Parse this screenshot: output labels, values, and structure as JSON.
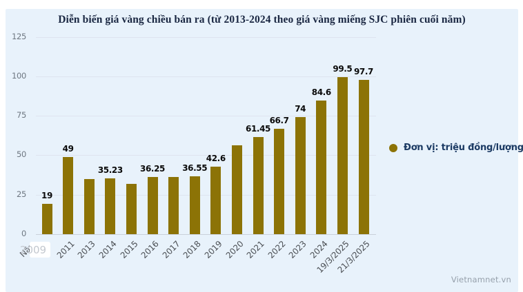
{
  "page": {
    "watermark": "Vietnamnet.vn"
  },
  "chart_data": {
    "type": "bar",
    "title": "Diễn biến giá vàng chiều bán ra (từ 2013-2024 theo giá vàng miếng SJC phiên cuối năm)",
    "x_axis_label": "Năm",
    "highlighted_tick": "2009",
    "categories": [
      "2009",
      "2011",
      "2013",
      "2014",
      "2015",
      "2016",
      "2017",
      "2018",
      "2019",
      "2020",
      "2021",
      "2022",
      "2023",
      "2024",
      "19/3/2025",
      "21/3/2025"
    ],
    "values": [
      19,
      49,
      34.8,
      35.23,
      31.9,
      36.25,
      36.4,
      36.55,
      42.6,
      56.1,
      61.45,
      66.7,
      74,
      84.6,
      99.5,
      97.7
    ],
    "data_labels": [
      "19",
      "49",
      "",
      "35.23",
      "",
      "36.25",
      "",
      "36.55",
      "42.6",
      "",
      "61.45",
      "66.7",
      "74",
      "84.6",
      "99.5",
      "97.7"
    ],
    "y_ticks": [
      0,
      25,
      50,
      75,
      100,
      125
    ],
    "ylim": [
      0,
      125
    ],
    "grid": true,
    "legend": {
      "position": "right",
      "label": "Đơn vị: triệu đồng/lượng",
      "marker_color": "#8c7306"
    },
    "colors": {
      "bar": "#8c7306",
      "panel_background": "#e8f2fb",
      "title_text": "#1a2742",
      "gridline": "#dee4ef",
      "axis_line": "#c9d1da",
      "y_tick_text": "#6e7781",
      "x_tick_text": "#4b4f54",
      "value_label_text": "#0b0b0b",
      "legend_text": "#1b3a63",
      "watermark_text": "#96a0ab",
      "highlight_box": "#ffffff",
      "highlight_text": "#c3c8cf"
    }
  }
}
